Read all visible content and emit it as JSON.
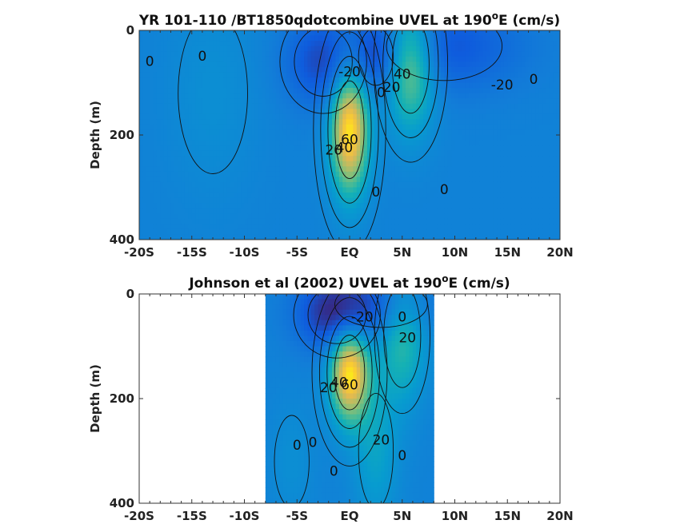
{
  "chart_data": [
    {
      "type": "heatmap",
      "title_main": "YR 101-110 /BT1850qdotcombine UVEL at 190",
      "title_sup": "o",
      "title_tail": "E (cm/s)",
      "ylabel": "Depth (m)",
      "x_tick_labels": [
        "-20S",
        "-15S",
        "-10S",
        "-5S",
        "EQ",
        "5N",
        "10N",
        "15N",
        "20N"
      ],
      "x_ticks": [
        -20,
        -15,
        -10,
        -5,
        0,
        5,
        10,
        15,
        20
      ],
      "xlim": [
        -20,
        20
      ],
      "y_tick_labels": [
        "0",
        "200",
        "400"
      ],
      "y_ticks": [
        0,
        200,
        400
      ],
      "ylim": [
        0,
        400
      ],
      "y_reversed": true,
      "data_xlim": [
        -20,
        20
      ],
      "colormap": "parula",
      "clim": [
        -40,
        90
      ],
      "features": [
        {
          "x": 0,
          "depth": 190,
          "sx": 1.25,
          "sz": 85,
          "amp": 85
        },
        {
          "x": 5.8,
          "depth": 65,
          "sx": 1.6,
          "sz": 85,
          "amp": 55
        },
        {
          "x": -2.5,
          "depth": 60,
          "sx": 2.5,
          "sz": 60,
          "amp": -30
        },
        {
          "x": 9,
          "depth": 30,
          "sx": 5,
          "sz": 60,
          "amp": -25
        },
        {
          "x": 2.5,
          "depth": 50,
          "sx": 1.5,
          "sz": 50,
          "amp": -20
        },
        {
          "x": -13,
          "depth": 120,
          "sx": 3,
          "sz": 140,
          "amp": 8
        }
      ],
      "contour_labels": [
        {
          "text": "0",
          "x": -19,
          "depth": 60
        },
        {
          "text": "0",
          "x": -14,
          "depth": 50
        },
        {
          "text": "-20",
          "x": 0,
          "depth": 80
        },
        {
          "text": "0",
          "x": 3,
          "depth": 120
        },
        {
          "text": "20",
          "x": 4,
          "depth": 110
        },
        {
          "text": "40",
          "x": 5,
          "depth": 85
        },
        {
          "text": "-20",
          "x": 14.5,
          "depth": 105
        },
        {
          "text": "0",
          "x": 17.5,
          "depth": 95
        },
        {
          "text": "60",
          "x": 0,
          "depth": 210
        },
        {
          "text": "40",
          "x": -0.5,
          "depth": 225
        },
        {
          "text": "20",
          "x": -1.5,
          "depth": 230
        },
        {
          "text": "0",
          "x": 2.5,
          "depth": 310
        },
        {
          "text": "0",
          "x": 9,
          "depth": 305
        }
      ]
    },
    {
      "type": "heatmap",
      "title_main": "Johnson et al (2002) UVEL at 190",
      "title_sup": "o",
      "title_tail": "E (cm/s)",
      "ylabel": "Depth (m)",
      "x_tick_labels": [
        "-20S",
        "-15S",
        "-10S",
        "-5S",
        "EQ",
        "5N",
        "10N",
        "15N",
        "20N"
      ],
      "x_ticks": [
        -20,
        -15,
        -10,
        -5,
        0,
        5,
        10,
        15,
        20
      ],
      "xlim": [
        -20,
        20
      ],
      "y_tick_labels": [
        "0",
        "200",
        "400"
      ],
      "y_ticks": [
        0,
        200,
        400
      ],
      "ylim": [
        0,
        400
      ],
      "y_reversed": true,
      "data_xlim": [
        -8,
        8
      ],
      "colormap": "parula",
      "clim": [
        -40,
        90
      ],
      "features": [
        {
          "x": 0,
          "depth": 150,
          "sx": 1.3,
          "sz": 65,
          "amp": 85
        },
        {
          "x": 5,
          "depth": 80,
          "sx": 1.6,
          "sz": 90,
          "amp": 35
        },
        {
          "x": -1.2,
          "depth": 40,
          "sx": 2.5,
          "sz": 50,
          "amp": -40
        },
        {
          "x": 3,
          "depth": 20,
          "sx": 4,
          "sz": 40,
          "amp": -20
        },
        {
          "x": 2.5,
          "depth": 300,
          "sx": 1.5,
          "sz": 100,
          "amp": 20
        },
        {
          "x": -5.5,
          "depth": 320,
          "sx": 1.5,
          "sz": 80,
          "amp": 8
        }
      ],
      "contour_labels": [
        {
          "text": "-20",
          "x": 1.2,
          "depth": 45
        },
        {
          "text": "0",
          "x": 5,
          "depth": 45
        },
        {
          "text": "20",
          "x": 5.5,
          "depth": 85
        },
        {
          "text": "20",
          "x": -2,
          "depth": 180
        },
        {
          "text": "40",
          "x": -1,
          "depth": 170
        },
        {
          "text": "60",
          "x": 0,
          "depth": 175
        },
        {
          "text": "0",
          "x": -5,
          "depth": 290
        },
        {
          "text": "0",
          "x": -3.5,
          "depth": 285
        },
        {
          "text": "20",
          "x": 3,
          "depth": 280
        },
        {
          "text": "0",
          "x": 5,
          "depth": 310
        },
        {
          "text": "0",
          "x": -1.5,
          "depth": 340
        }
      ]
    }
  ]
}
